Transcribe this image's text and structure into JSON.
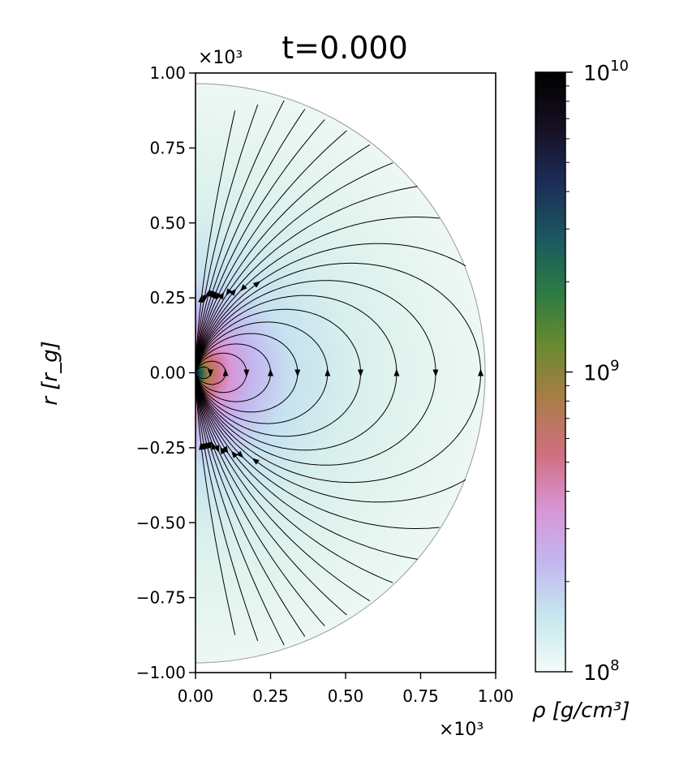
{
  "chart_data": {
    "type": "heatmap",
    "title": "t=0.000",
    "ylabel": "r [r_g]",
    "xlabel": "",
    "x_multiplier": "×10³",
    "y_multiplier": "×10³",
    "xlim": [
      0.0,
      1.0
    ],
    "ylim": [
      -1.0,
      1.0
    ],
    "xticks": [
      "0.00",
      "0.25",
      "0.50",
      "0.75",
      "1.00"
    ],
    "yticks": [
      "1.00",
      "0.75",
      "0.50",
      "0.25",
      "0.00",
      "−0.25",
      "−0.50",
      "−0.75",
      "−1.00"
    ],
    "domain_radius": 0.97,
    "field": "density (log scale), peaked at origin, decreasing outward",
    "streamlines": "dipolar magnetic field loops",
    "colorbar": {
      "label": "ρ [g/cm³]",
      "scale": "log",
      "range": [
        100000000,
        10000000000
      ],
      "ticks": [
        {
          "value": 10000000000,
          "base": "10",
          "exp": "10"
        },
        {
          "value": 1000000000,
          "base": "10",
          "exp": "9"
        },
        {
          "value": 100000000,
          "base": "10",
          "exp": "8"
        }
      ],
      "colormap_stops": [
        "#f4fbf8",
        "#c6e8ee",
        "#c2b7f0",
        "#d994d6",
        "#cf6f7f",
        "#a97d47",
        "#6a8a2f",
        "#2a7a46",
        "#1b5660",
        "#1c2c57",
        "#170f22",
        "#000000"
      ]
    },
    "grid": false
  }
}
